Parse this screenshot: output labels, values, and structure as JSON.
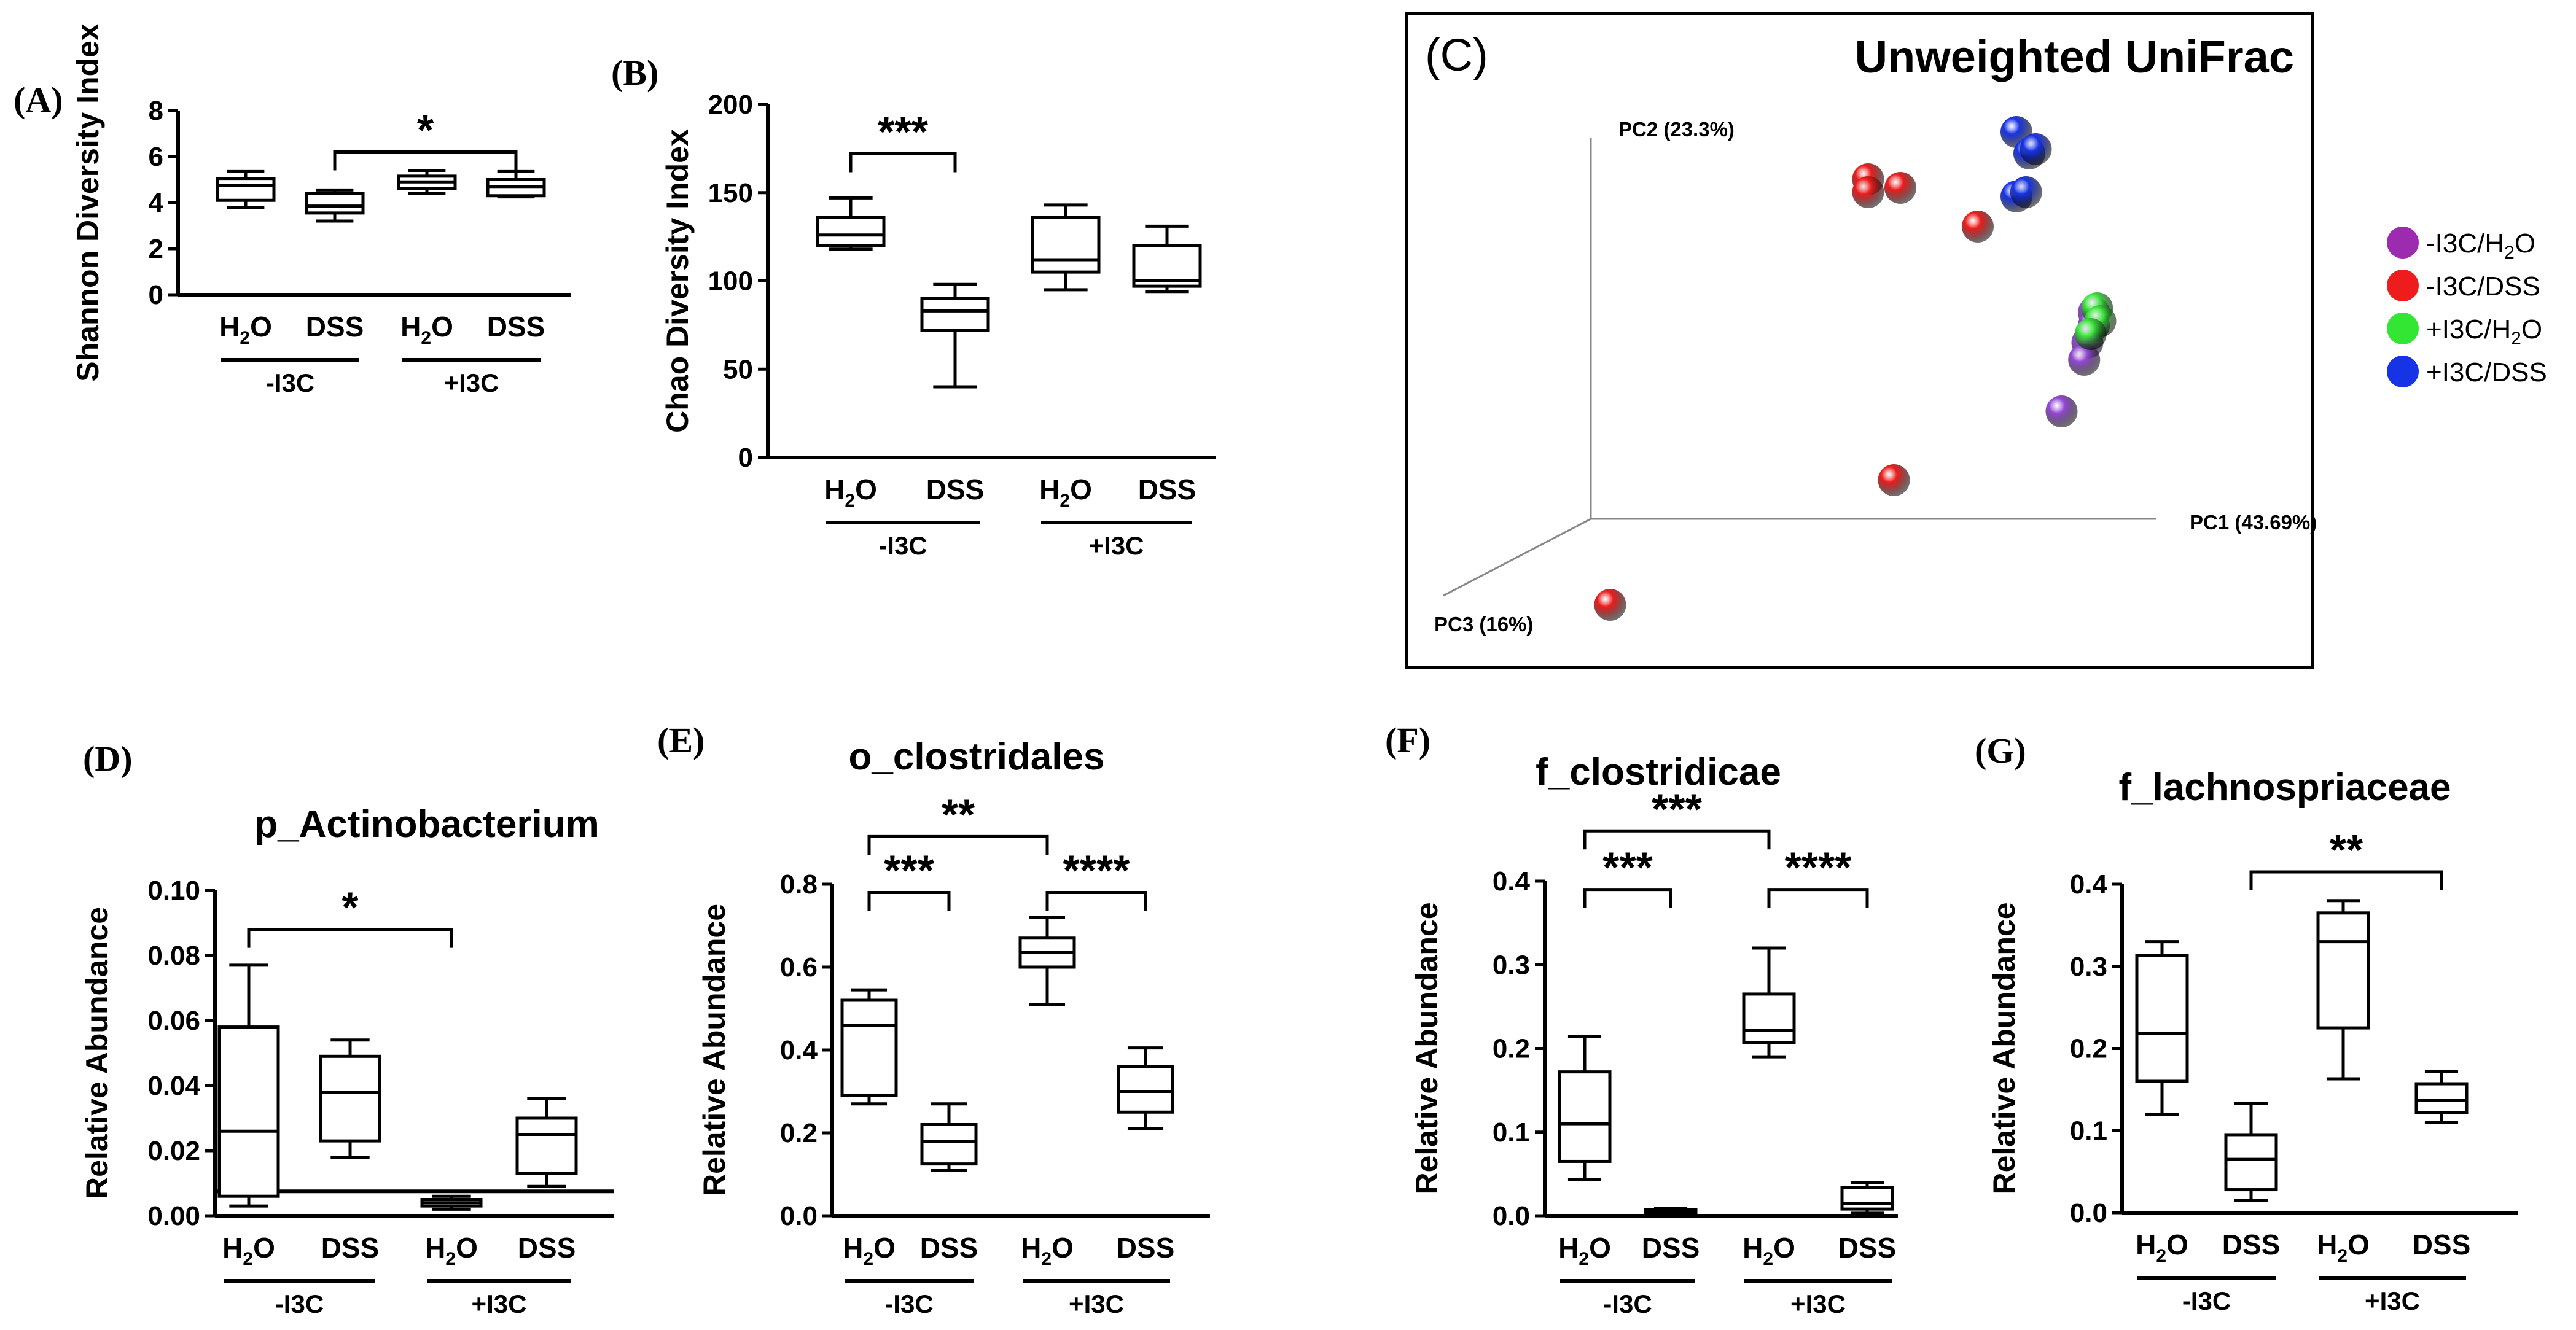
{
  "chart_data": [
    {
      "type": "box",
      "panel_label": "(A)",
      "title": "",
      "ylabel": "Shannon  Diversity Index",
      "ylim": [
        0,
        8
      ],
      "yticks": [
        "0",
        "2",
        "4",
        "6",
        "8"
      ],
      "groups": [
        "-I3C",
        "+I3C"
      ],
      "categories": [
        "H2O",
        "DSS",
        "H2O",
        "DSS"
      ],
      "boxes": [
        {
          "min": 3.8,
          "q1": 4.1,
          "median": 4.75,
          "q3": 5.05,
          "max": 5.35
        },
        {
          "min": 3.2,
          "q1": 3.55,
          "median": 3.85,
          "q3": 4.4,
          "max": 4.55
        },
        {
          "min": 4.4,
          "q1": 4.6,
          "median": 4.9,
          "q3": 5.15,
          "max": 5.4
        },
        {
          "min": 4.25,
          "q1": 4.3,
          "median": 4.7,
          "q3": 5.0,
          "max": 5.35
        }
      ],
      "significance": [
        {
          "from": 1,
          "to": 3,
          "label": "*",
          "y": 6.2
        }
      ]
    },
    {
      "type": "box",
      "panel_label": "(B)",
      "title": "",
      "ylabel": "Chao Diversity Index",
      "ylim": [
        0,
        200
      ],
      "yticks": [
        "0",
        "50",
        "100",
        "150",
        "200"
      ],
      "groups": [
        "-I3C",
        "+I3C"
      ],
      "categories": [
        "H2O",
        "DSS",
        "H2O",
        "DSS"
      ],
      "boxes": [
        {
          "min": 118,
          "q1": 120,
          "median": 126,
          "q3": 136,
          "max": 147
        },
        {
          "min": 40,
          "q1": 72,
          "median": 83,
          "q3": 90,
          "max": 98
        },
        {
          "min": 95,
          "q1": 105,
          "median": 112,
          "q3": 136,
          "max": 143
        },
        {
          "min": 94,
          "q1": 97,
          "median": 100,
          "q3": 120,
          "max": 131
        }
      ],
      "significance": [
        {
          "from": 0,
          "to": 1,
          "label": "***",
          "y": 172
        }
      ]
    },
    {
      "type": "box",
      "panel_label": "(D)",
      "title": "p_Actinobacterium",
      "ylabel": "Relative Abundance",
      "ylim": [
        0,
        0.1
      ],
      "yticks": [
        "0.00",
        "0.02",
        "0.04",
        "0.06",
        "0.08",
        "0.10"
      ],
      "groups": [
        "-I3C",
        "+I3C"
      ],
      "categories": [
        "H2O",
        "DSS",
        "H2O",
        "DSS"
      ],
      "reference_line": 0.0075,
      "boxes": [
        {
          "min": 0.003,
          "q1": 0.006,
          "median": 0.026,
          "q3": 0.058,
          "max": 0.077
        },
        {
          "min": 0.018,
          "q1": 0.023,
          "median": 0.038,
          "q3": 0.049,
          "max": 0.054
        },
        {
          "min": 0.002,
          "q1": 0.003,
          "median": 0.004,
          "q3": 0.005,
          "max": 0.006
        },
        {
          "min": 0.009,
          "q1": 0.013,
          "median": 0.025,
          "q3": 0.03,
          "max": 0.036
        }
      ],
      "significance": [
        {
          "from": 0,
          "to": 2,
          "label": "*",
          "y": 0.088
        }
      ]
    },
    {
      "type": "box",
      "panel_label": "(E)",
      "title": "o_clostridales",
      "ylabel": "Relative Abundance",
      "ylim": [
        0,
        0.8
      ],
      "yticks": [
        "0.0",
        "0.2",
        "0.4",
        "0.6",
        "0.8"
      ],
      "groups": [
        "-I3C",
        "+I3C"
      ],
      "categories": [
        "H2O",
        "DSS",
        "H2O",
        "DSS"
      ],
      "boxes": [
        {
          "min": 0.27,
          "q1": 0.29,
          "median": 0.46,
          "q3": 0.52,
          "max": 0.545
        },
        {
          "min": 0.11,
          "q1": 0.125,
          "median": 0.18,
          "q3": 0.22,
          "max": 0.27
        },
        {
          "min": 0.51,
          "q1": 0.6,
          "median": 0.635,
          "q3": 0.67,
          "max": 0.72
        },
        {
          "min": 0.21,
          "q1": 0.25,
          "median": 0.3,
          "q3": 0.36,
          "max": 0.405
        }
      ],
      "significance": [
        {
          "from": 0,
          "to": 1,
          "label": "***",
          "y": 0.78
        },
        {
          "from": 2,
          "to": 3,
          "label": "****",
          "y": 0.78
        },
        {
          "from": 0,
          "to": 2,
          "label": "**",
          "y": 0.915
        }
      ]
    },
    {
      "type": "box",
      "panel_label": "(F)",
      "title": "f_clostridicae",
      "ylabel": "Relative Abundance",
      "ylim": [
        0,
        0.4
      ],
      "yticks": [
        "0.0",
        "0.1",
        "0.2",
        "0.3",
        "0.4"
      ],
      "groups": [
        "-I3C",
        "+I3C"
      ],
      "categories": [
        "H2O",
        "DSS",
        "H2O",
        "DSS"
      ],
      "boxes": [
        {
          "min": 0.043,
          "q1": 0.065,
          "median": 0.11,
          "q3": 0.172,
          "max": 0.214
        },
        {
          "min": 0.0,
          "q1": 0.002,
          "median": 0.004,
          "q3": 0.007,
          "max": 0.009
        },
        {
          "min": 0.19,
          "q1": 0.207,
          "median": 0.222,
          "q3": 0.265,
          "max": 0.32
        },
        {
          "min": 0.003,
          "q1": 0.008,
          "median": 0.015,
          "q3": 0.034,
          "max": 0.04
        }
      ],
      "significance": [
        {
          "from": 0,
          "to": 1,
          "label": "***",
          "y": 0.39
        },
        {
          "from": 2,
          "to": 3,
          "label": "****",
          "y": 0.39
        },
        {
          "from": 0,
          "to": 2,
          "label": "***",
          "y": 0.46
        }
      ]
    },
    {
      "type": "box",
      "panel_label": "(G)",
      "title": "f_lachnospriaceae",
      "ylabel": "Relative Abundance",
      "ylim": [
        0,
        0.4
      ],
      "yticks": [
        "0.0",
        "0.1",
        "0.2",
        "0.3",
        "0.4"
      ],
      "groups": [
        "-I3C",
        "+I3C"
      ],
      "categories": [
        "H2O",
        "DSS",
        "H2O",
        "DSS"
      ],
      "boxes": [
        {
          "min": 0.12,
          "q1": 0.16,
          "median": 0.218,
          "q3": 0.313,
          "max": 0.33
        },
        {
          "min": 0.015,
          "q1": 0.028,
          "median": 0.065,
          "q3": 0.095,
          "max": 0.133
        },
        {
          "min": 0.163,
          "q1": 0.225,
          "median": 0.33,
          "q3": 0.365,
          "max": 0.38
        },
        {
          "min": 0.11,
          "q1": 0.122,
          "median": 0.137,
          "q3": 0.157,
          "max": 0.172
        }
      ],
      "significance": [
        {
          "from": 1,
          "to": 3,
          "label": "**",
          "y": 0.415
        }
      ]
    },
    {
      "type": "scatter3d",
      "panel_label": "(C)",
      "title": "Unweighted UniFrac",
      "axes": {
        "x": "PC1 (43.69%)",
        "y": "PC2 (23.3%)",
        "z": "PC3 (16%)"
      },
      "legend": [
        {
          "label": "-I3C/",
          "sub": "H",
          "tail": "O",
          "sub_digit": "2",
          "color": "#9c2bb0"
        },
        {
          "label": "-I3C/DSS",
          "color": "#ee1c1c"
        },
        {
          "label": "+I3C/",
          "sub_digit": "2",
          "tail_pre": "H",
          "tail": "O",
          "color": "#33e633"
        },
        {
          "label": "+I3C/DSS",
          "color": "#1733e6"
        }
      ],
      "series": [
        {
          "name": "-I3C/H2O",
          "color": "#9448d6",
          "points": [
            [
              0.78,
              0.48
            ],
            [
              0.78,
              0.45
            ],
            [
              0.77,
              0.41
            ],
            [
              0.765,
              0.37
            ],
            [
              0.73,
              0.25
            ]
          ]
        },
        {
          "name": "-I3C/DSS",
          "color": "#ee1c1c",
          "points": [
            [
              0.43,
              0.79
            ],
            [
              0.43,
              0.76
            ],
            [
              0.48,
              0.77
            ],
            [
              0.6,
              0.68
            ],
            [
              0.47,
              0.09
            ],
            [
              0.03,
              -0.2
            ]
          ]
        },
        {
          "name": "+I3C/H2O",
          "color": "#3ee63e",
          "points": [
            [
              0.785,
              0.49
            ],
            [
              0.79,
              0.46
            ],
            [
              0.775,
              0.43
            ]
          ]
        },
        {
          "name": "+I3C/DSS",
          "color": "#1733e6",
          "points": [
            [
              0.66,
              0.9
            ],
            [
              0.68,
              0.85
            ],
            [
              0.69,
              0.86
            ],
            [
              0.66,
              0.75
            ],
            [
              0.675,
              0.76
            ]
          ]
        }
      ]
    }
  ],
  "common": {
    "h2o_main": "H",
    "h2o_sub": "2",
    "h2o_tail": "O"
  }
}
